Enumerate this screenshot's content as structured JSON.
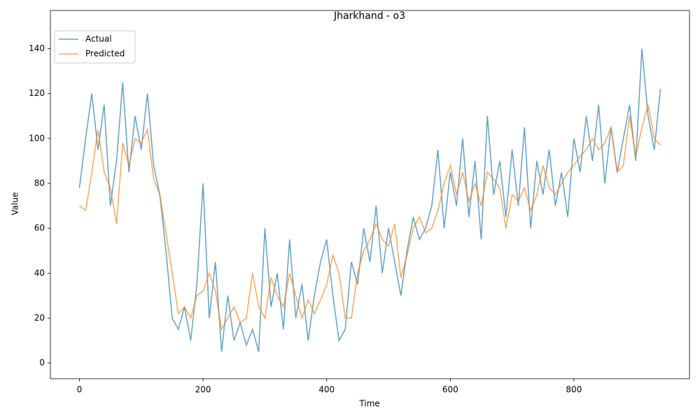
{
  "chart_data": {
    "type": "line",
    "title": "Jharkhand - o3",
    "x_label": "Time",
    "y_label": "Value",
    "x": [
      0,
      10,
      20,
      30,
      40,
      50,
      60,
      70,
      80,
      90,
      100,
      110,
      120,
      130,
      140,
      150,
      160,
      170,
      180,
      190,
      200,
      210,
      220,
      230,
      240,
      250,
      260,
      270,
      280,
      290,
      300,
      310,
      320,
      330,
      340,
      350,
      360,
      370,
      380,
      390,
      400,
      410,
      420,
      430,
      440,
      450,
      460,
      470,
      480,
      490,
      500,
      510,
      520,
      530,
      540,
      550,
      560,
      570,
      580,
      590,
      600,
      610,
      620,
      630,
      640,
      650,
      660,
      670,
      680,
      690,
      700,
      710,
      720,
      730,
      740,
      750,
      760,
      770,
      780,
      790,
      800,
      810,
      820,
      830,
      840,
      850,
      860,
      870,
      880,
      890,
      900,
      910,
      920,
      930,
      940
    ],
    "series": [
      {
        "name": "Actual",
        "color": "#1f77b4",
        "values": [
          78,
          100,
          120,
          95,
          115,
          70,
          90,
          125,
          85,
          110,
          95,
          120,
          88,
          75,
          50,
          20,
          15,
          25,
          10,
          35,
          80,
          20,
          45,
          5,
          30,
          10,
          18,
          8,
          15,
          5,
          60,
          25,
          40,
          15,
          55,
          20,
          35,
          10,
          30,
          45,
          55,
          30,
          10,
          15,
          45,
          35,
          60,
          45,
          70,
          40,
          60,
          45,
          30,
          50,
          65,
          55,
          60,
          70,
          95,
          60,
          85,
          70,
          100,
          65,
          90,
          55,
          110,
          75,
          90,
          65,
          95,
          70,
          105,
          60,
          90,
          75,
          95,
          70,
          85,
          65,
          100,
          85,
          110,
          90,
          115,
          80,
          105,
          85,
          100,
          115,
          90,
          140,
          110,
          95,
          122
        ]
      },
      {
        "name": "Predicted",
        "color": "#ff7f0e",
        "values": [
          70,
          68,
          85,
          104,
          85,
          78,
          62,
          98,
          88,
          100,
          98,
          104,
          82,
          75,
          58,
          40,
          22,
          25,
          20,
          30,
          32,
          40,
          32,
          15,
          20,
          25,
          18,
          20,
          40,
          25,
          20,
          38,
          30,
          25,
          40,
          30,
          20,
          28,
          22,
          28,
          35,
          48,
          40,
          20,
          20,
          40,
          50,
          55,
          62,
          55,
          52,
          62,
          38,
          48,
          60,
          65,
          58,
          60,
          68,
          80,
          88,
          75,
          85,
          72,
          80,
          70,
          85,
          82,
          78,
          60,
          75,
          72,
          78,
          68,
          75,
          88,
          78,
          75,
          80,
          85,
          88,
          92,
          95,
          100,
          95,
          98,
          105,
          85,
          88,
          110,
          92,
          105,
          115,
          100,
          97
        ]
      }
    ],
    "xlim": [
      -47,
      987
    ],
    "ylim": [
      -7,
      157
    ],
    "xticks": [
      0,
      200,
      400,
      600,
      800
    ],
    "yticks": [
      0,
      20,
      40,
      60,
      80,
      100,
      120,
      140
    ],
    "legend": "upper left"
  }
}
